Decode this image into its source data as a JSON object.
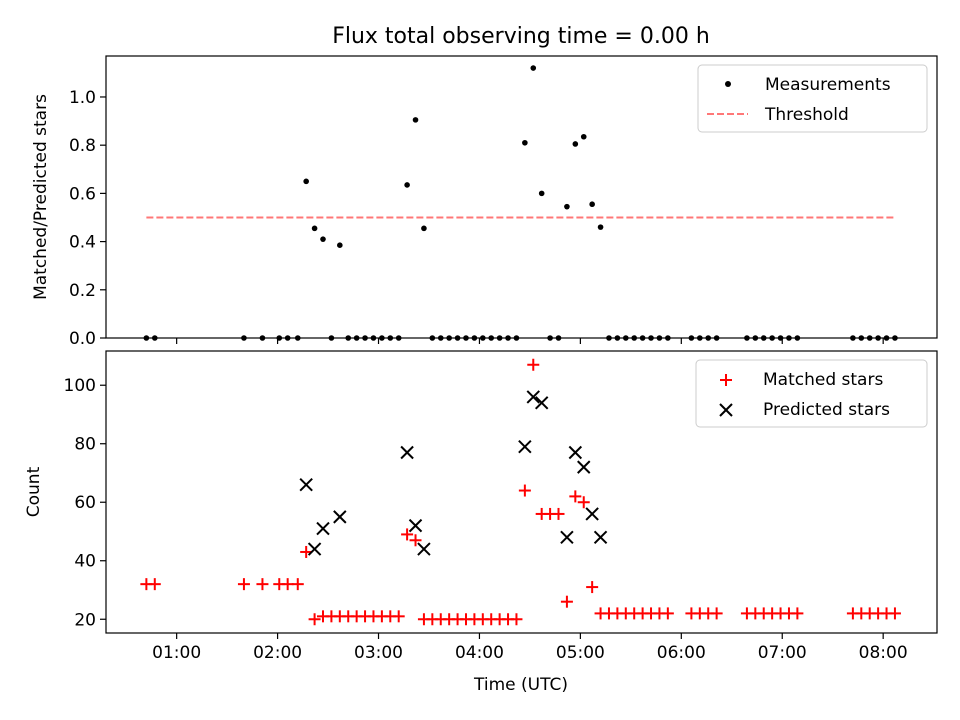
{
  "chart_data": [
    {
      "type": "scatter",
      "title": "Flux total observing time = 0.00 h",
      "xlabel": "",
      "ylabel": "Matched/Predicted stars",
      "xlim": [
        "00:18",
        "08:32"
      ],
      "ylim": [
        0,
        1.17
      ],
      "yticks": [
        "0.0",
        "0.2",
        "0.4",
        "0.6",
        "0.8",
        "1.0"
      ],
      "legend_position": "top-right",
      "series": [
        {
          "name": "Measurements",
          "marker": "dot",
          "color": "#000000",
          "points": [
            [
              "00:42",
              0
            ],
            [
              "00:47",
              0
            ],
            [
              "01:40",
              0
            ],
            [
              "01:51",
              0
            ],
            [
              "02:01",
              0
            ],
            [
              "02:06",
              0
            ],
            [
              "02:12",
              0
            ],
            [
              "02:17",
              0.65
            ],
            [
              "02:22",
              0.455
            ],
            [
              "02:27",
              0.41
            ],
            [
              "02:32",
              0
            ],
            [
              "02:37",
              0.385
            ],
            [
              "02:42",
              0
            ],
            [
              "02:47",
              0
            ],
            [
              "02:52",
              0
            ],
            [
              "02:57",
              0
            ],
            [
              "03:02",
              0
            ],
            [
              "03:07",
              0
            ],
            [
              "03:12",
              0
            ],
            [
              "03:17",
              0.635
            ],
            [
              "03:22",
              0.905
            ],
            [
              "03:27",
              0.455
            ],
            [
              "03:32",
              0
            ],
            [
              "03:37",
              0
            ],
            [
              "03:42",
              0
            ],
            [
              "03:47",
              0
            ],
            [
              "03:52",
              0
            ],
            [
              "03:57",
              0
            ],
            [
              "04:02",
              0
            ],
            [
              "04:07",
              0
            ],
            [
              "04:12",
              0
            ],
            [
              "04:17",
              0
            ],
            [
              "04:22",
              0
            ],
            [
              "04:27",
              0.81
            ],
            [
              "04:32",
              1.12
            ],
            [
              "04:37",
              0.6
            ],
            [
              "04:42",
              0
            ],
            [
              "04:47",
              0
            ],
            [
              "04:52",
              0.545
            ],
            [
              "04:57",
              0.805
            ],
            [
              "05:02",
              0.835
            ],
            [
              "05:07",
              0.555
            ],
            [
              "05:12",
              0.46
            ],
            [
              "05:17",
              0
            ],
            [
              "05:22",
              0
            ],
            [
              "05:27",
              0
            ],
            [
              "05:32",
              0
            ],
            [
              "05:37",
              0
            ],
            [
              "05:42",
              0
            ],
            [
              "05:47",
              0
            ],
            [
              "05:52",
              0
            ],
            [
              "06:06",
              0
            ],
            [
              "06:11",
              0
            ],
            [
              "06:16",
              0
            ],
            [
              "06:21",
              0
            ],
            [
              "06:39",
              0
            ],
            [
              "06:44",
              0
            ],
            [
              "06:49",
              0
            ],
            [
              "06:54",
              0
            ],
            [
              "06:59",
              0
            ],
            [
              "07:04",
              0
            ],
            [
              "07:09",
              0
            ],
            [
              "07:42",
              0
            ],
            [
              "07:47",
              0
            ],
            [
              "07:52",
              0
            ],
            [
              "07:57",
              0
            ],
            [
              "08:02",
              0
            ],
            [
              "08:07",
              0
            ]
          ]
        },
        {
          "name": "Threshold",
          "style": "dashed-line",
          "color": "#ff7777",
          "from": "00:42",
          "to": "08:07",
          "value": 0.5
        }
      ]
    },
    {
      "type": "scatter",
      "title": "",
      "xlabel": "Time (UTC)",
      "ylabel": "Count",
      "xlim": [
        "00:18",
        "08:32"
      ],
      "ylim": [
        15.3,
        111.7
      ],
      "yticks": [
        "20",
        "40",
        "60",
        "80",
        "100"
      ],
      "xticks": [
        "01:00",
        "02:00",
        "03:00",
        "04:00",
        "05:00",
        "06:00",
        "07:00",
        "08:00"
      ],
      "legend_position": "top-right",
      "series": [
        {
          "name": "Matched stars",
          "marker": "plus",
          "color": "#ff0000",
          "points": [
            [
              "00:42",
              32
            ],
            [
              "00:47",
              32
            ],
            [
              "01:40",
              32
            ],
            [
              "01:51",
              32
            ],
            [
              "02:01",
              32
            ],
            [
              "02:06",
              32
            ],
            [
              "02:12",
              32
            ],
            [
              "02:17",
              43
            ],
            [
              "02:22",
              20
            ],
            [
              "02:27",
              21
            ],
            [
              "02:32",
              21
            ],
            [
              "02:37",
              21
            ],
            [
              "02:42",
              21
            ],
            [
              "02:47",
              21
            ],
            [
              "02:52",
              21
            ],
            [
              "02:57",
              21
            ],
            [
              "03:02",
              21
            ],
            [
              "03:07",
              21
            ],
            [
              "03:12",
              21
            ],
            [
              "03:17",
              49
            ],
            [
              "03:22",
              47
            ],
            [
              "03:27",
              20
            ],
            [
              "03:32",
              20
            ],
            [
              "03:37",
              20
            ],
            [
              "03:42",
              20
            ],
            [
              "03:47",
              20
            ],
            [
              "03:52",
              20
            ],
            [
              "03:57",
              20
            ],
            [
              "04:02",
              20
            ],
            [
              "04:07",
              20
            ],
            [
              "04:12",
              20
            ],
            [
              "04:17",
              20
            ],
            [
              "04:22",
              20
            ],
            [
              "04:27",
              64
            ],
            [
              "04:32",
              107
            ],
            [
              "04:37",
              56
            ],
            [
              "04:42",
              56
            ],
            [
              "04:47",
              56
            ],
            [
              "04:52",
              26
            ],
            [
              "04:57",
              62
            ],
            [
              "05:02",
              60
            ],
            [
              "05:07",
              31
            ],
            [
              "05:12",
              22
            ],
            [
              "05:17",
              22
            ],
            [
              "05:22",
              22
            ],
            [
              "05:27",
              22
            ],
            [
              "05:32",
              22
            ],
            [
              "05:37",
              22
            ],
            [
              "05:42",
              22
            ],
            [
              "05:47",
              22
            ],
            [
              "05:52",
              22
            ],
            [
              "06:06",
              22
            ],
            [
              "06:11",
              22
            ],
            [
              "06:16",
              22
            ],
            [
              "06:21",
              22
            ],
            [
              "06:39",
              22
            ],
            [
              "06:44",
              22
            ],
            [
              "06:49",
              22
            ],
            [
              "06:54",
              22
            ],
            [
              "06:59",
              22
            ],
            [
              "07:04",
              22
            ],
            [
              "07:09",
              22
            ],
            [
              "07:42",
              22
            ],
            [
              "07:47",
              22
            ],
            [
              "07:52",
              22
            ],
            [
              "07:57",
              22
            ],
            [
              "08:02",
              22
            ],
            [
              "08:07",
              22
            ]
          ]
        },
        {
          "name": "Predicted stars",
          "marker": "x",
          "color": "#000000",
          "points": [
            [
              "02:17",
              66
            ],
            [
              "02:22",
              44
            ],
            [
              "02:27",
              51
            ],
            [
              "02:37",
              55
            ],
            [
              "03:17",
              77
            ],
            [
              "03:22",
              52
            ],
            [
              "03:27",
              44
            ],
            [
              "04:27",
              79
            ],
            [
              "04:32",
              96
            ],
            [
              "04:37",
              94
            ],
            [
              "04:52",
              48
            ],
            [
              "04:57",
              77
            ],
            [
              "05:02",
              72
            ],
            [
              "05:07",
              56
            ],
            [
              "05:12",
              48
            ]
          ]
        }
      ]
    }
  ]
}
